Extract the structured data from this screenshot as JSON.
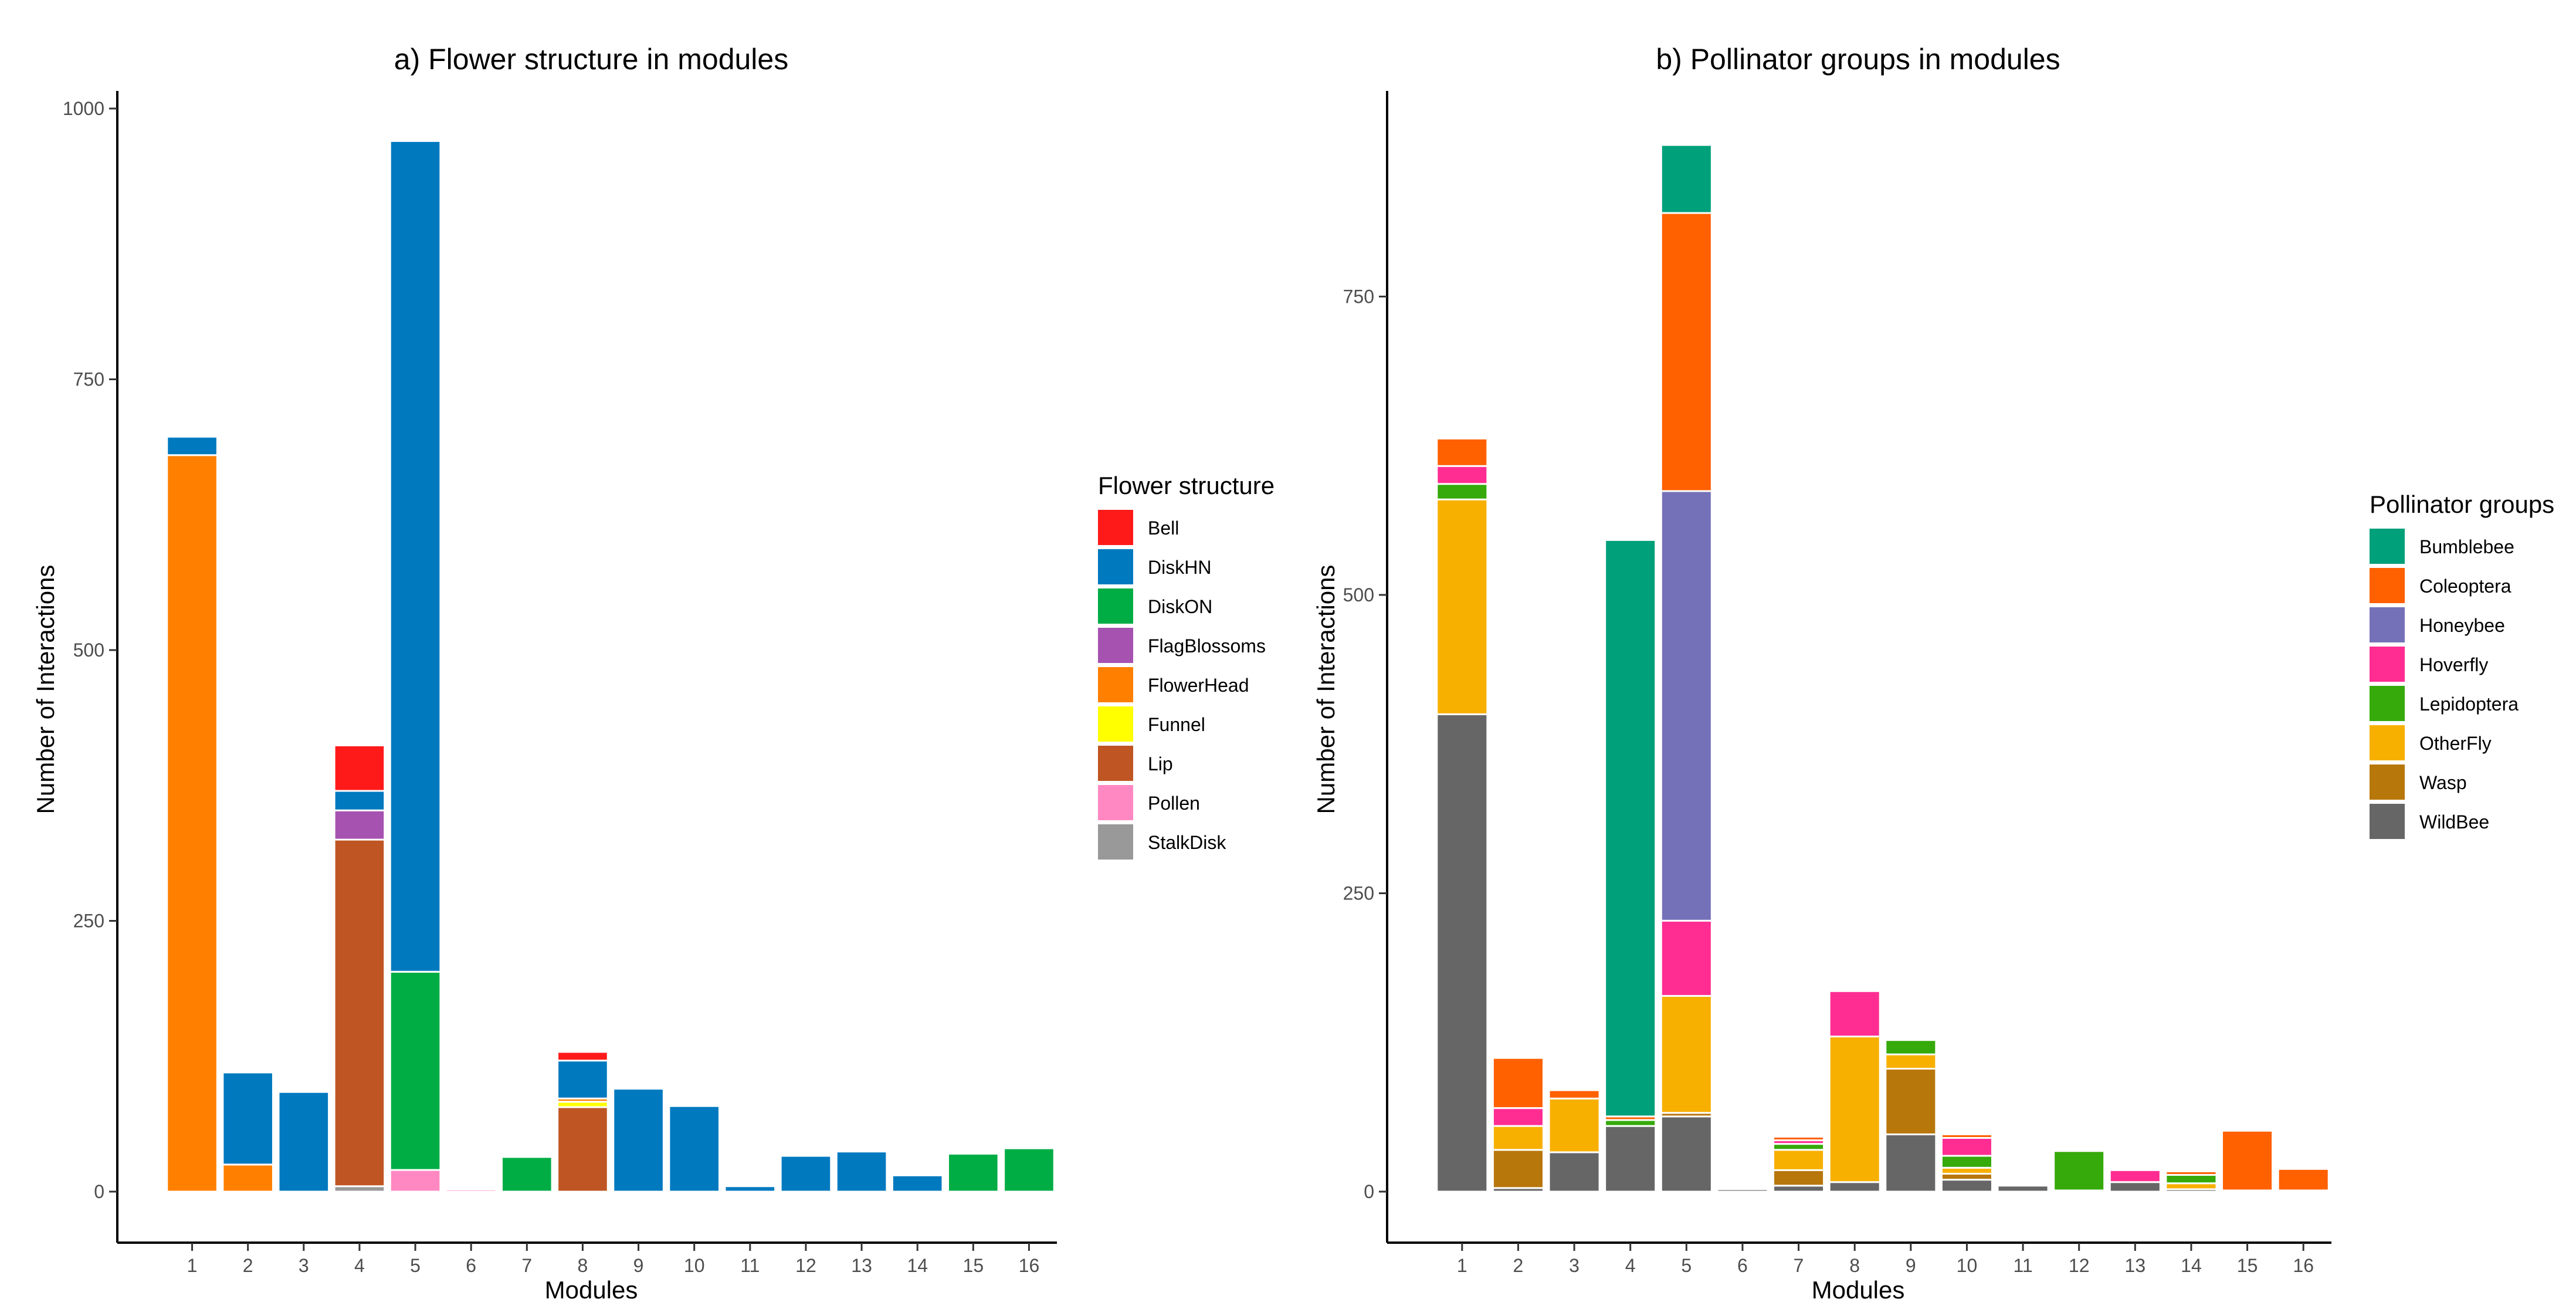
{
  "chart_data": [
    {
      "type": "bar",
      "stacked": true,
      "title": "a) Flower structure in modules",
      "xlabel": "Modules",
      "ylabel": "Number of Interactions",
      "categories": [
        "1",
        "2",
        "3",
        "4",
        "5",
        "6",
        "7",
        "8",
        "9",
        "10",
        "11",
        "12",
        "13",
        "14",
        "15",
        "16"
      ],
      "ylim": [
        0,
        1000
      ],
      "yticks": [
        0,
        250,
        500,
        750,
        1000
      ],
      "grid": false,
      "legend_title": "Flower structure",
      "legend_position": "right",
      "series": [
        {
          "name": "StalkDisk",
          "color": "#999999",
          "values": [
            0,
            0,
            0,
            5,
            0,
            0,
            0,
            0,
            0,
            0,
            0,
            0,
            0,
            0,
            0,
            0
          ]
        },
        {
          "name": "Pollen",
          "color": "#FF88C2",
          "values": [
            0,
            0,
            0,
            0,
            20,
            2,
            0,
            0,
            0,
            0,
            0,
            0,
            0,
            0,
            0,
            0
          ]
        },
        {
          "name": "Lip",
          "color": "#BF5522",
          "values": [
            0,
            0,
            0,
            320,
            0,
            0,
            0,
            78,
            0,
            0,
            0,
            0,
            0,
            0,
            0,
            0
          ]
        },
        {
          "name": "Funnel",
          "color": "#FFFF00",
          "values": [
            0,
            0,
            0,
            0,
            0,
            0,
            0,
            5,
            0,
            0,
            0,
            0,
            0,
            0,
            0,
            0
          ]
        },
        {
          "name": "FlowerHead",
          "color": "#FF8000",
          "values": [
            680,
            25,
            0,
            0,
            0,
            0,
            0,
            3,
            0,
            0,
            0,
            0,
            0,
            0,
            0,
            0
          ]
        },
        {
          "name": "FlagBlossoms",
          "color": "#A652B1",
          "values": [
            0,
            0,
            0,
            27,
            0,
            0,
            0,
            0,
            0,
            0,
            0,
            0,
            0,
            0,
            0,
            0
          ]
        },
        {
          "name": "DiskON",
          "color": "#00AD45",
          "values": [
            0,
            0,
            0,
            0,
            183,
            0,
            32,
            0,
            0,
            0,
            0,
            0,
            0,
            0,
            35,
            40
          ]
        },
        {
          "name": "DiskHN",
          "color": "#0079BF",
          "values": [
            17,
            85,
            92,
            18,
            767,
            0,
            0,
            35,
            95,
            79,
            5,
            33,
            37,
            15,
            0,
            0
          ]
        },
        {
          "name": "Bell",
          "color": "#FF1A1A",
          "values": [
            0,
            0,
            0,
            42,
            0,
            0,
            0,
            8,
            0,
            0,
            0,
            0,
            0,
            0,
            0,
            0
          ]
        }
      ],
      "legend": [
        {
          "name": "Bell",
          "color": "#FF1A1A"
        },
        {
          "name": "DiskHN",
          "color": "#0079BF"
        },
        {
          "name": "DiskON",
          "color": "#00AD45"
        },
        {
          "name": "FlagBlossoms",
          "color": "#A652B1"
        },
        {
          "name": "FlowerHead",
          "color": "#FF8000"
        },
        {
          "name": "Funnel",
          "color": "#FFFF00"
        },
        {
          "name": "Lip",
          "color": "#BF5522"
        },
        {
          "name": "Pollen",
          "color": "#FF88C2"
        },
        {
          "name": "StalkDisk",
          "color": "#999999"
        }
      ]
    },
    {
      "type": "bar",
      "stacked": true,
      "title": "b) Pollinator groups in modules",
      "xlabel": "Modules",
      "ylabel": "Number of Interactions",
      "categories": [
        "1",
        "2",
        "3",
        "4",
        "5",
        "6",
        "7",
        "8",
        "9",
        "10",
        "11",
        "12",
        "13",
        "14",
        "15",
        "16"
      ],
      "ylim": [
        0,
        870
      ],
      "yticks": [
        0,
        250,
        500,
        750
      ],
      "grid": false,
      "legend_title": "Pollinator groups",
      "legend_position": "right",
      "series": [
        {
          "name": "WildBee",
          "color": "#666666",
          "values": [
            400,
            3,
            33,
            55,
            63,
            2,
            5,
            8,
            48,
            10,
            5,
            1,
            8,
            2,
            1,
            1
          ]
        },
        {
          "name": "Wasp",
          "color": "#B8770B",
          "values": [
            0,
            32,
            0,
            0,
            3,
            0,
            13,
            0,
            55,
            5,
            0,
            0,
            0,
            0,
            0,
            0
          ]
        },
        {
          "name": "OtherFly",
          "color": "#F7B000",
          "values": [
            180,
            20,
            45,
            0,
            98,
            0,
            17,
            122,
            12,
            5,
            0,
            0,
            0,
            5,
            0,
            0
          ]
        },
        {
          "name": "Lepidoptera",
          "color": "#36A90B",
          "values": [
            13,
            0,
            0,
            5,
            0,
            0,
            5,
            0,
            12,
            10,
            0,
            33,
            0,
            7,
            0,
            0
          ]
        },
        {
          "name": "Hoverfly",
          "color": "#FF2D92",
          "values": [
            15,
            15,
            0,
            0,
            63,
            0,
            3,
            38,
            0,
            15,
            0,
            0,
            10,
            0,
            0,
            0
          ]
        },
        {
          "name": "Honeybee",
          "color": "#7571B8",
          "values": [
            0,
            0,
            0,
            0,
            360,
            0,
            0,
            0,
            0,
            0,
            0,
            0,
            0,
            0,
            0,
            0
          ]
        },
        {
          "name": "Coleoptera",
          "color": "#FF6000",
          "values": [
            23,
            42,
            7,
            3,
            233,
            0,
            3,
            0,
            0,
            3,
            0,
            0,
            0,
            3,
            50,
            18
          ]
        },
        {
          "name": "Bumblebee",
          "color": "#00A07A",
          "values": [
            0,
            0,
            0,
            483,
            57,
            0,
            0,
            0,
            0,
            0,
            0,
            0,
            0,
            0,
            0,
            0
          ]
        }
      ],
      "legend": [
        {
          "name": "Bumblebee",
          "color": "#00A07A"
        },
        {
          "name": "Coleoptera",
          "color": "#FF6000"
        },
        {
          "name": "Honeybee",
          "color": "#7571B8"
        },
        {
          "name": "Hoverfly",
          "color": "#FF2D92"
        },
        {
          "name": "Lepidoptera",
          "color": "#36A90B"
        },
        {
          "name": "OtherFly",
          "color": "#F7B000"
        },
        {
          "name": "Wasp",
          "color": "#B8770B"
        },
        {
          "name": "WildBee",
          "color": "#666666"
        }
      ]
    }
  ]
}
